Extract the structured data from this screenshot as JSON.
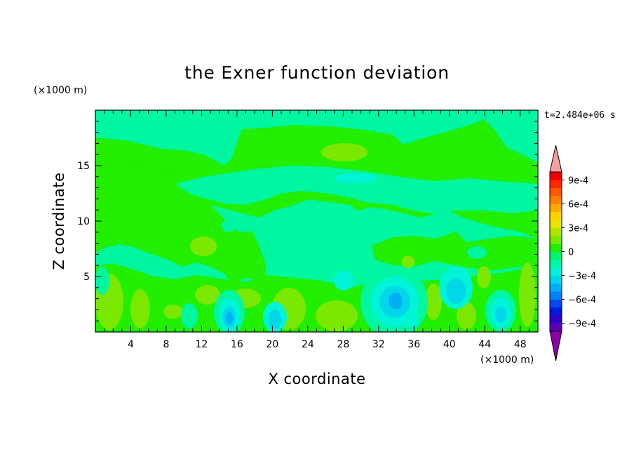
{
  "chart_data": {
    "type": "heatmap",
    "title": "the Exner function deviation",
    "xlabel": "X coordinate",
    "ylabel": "Z coordinate",
    "x_unit": "(×1000 m)",
    "y_unit": "(×1000 m)",
    "time_label": "t=2.484e+06 s",
    "xlim": [
      0,
      50
    ],
    "ylim": [
      0,
      20
    ],
    "x_ticks": [
      "4",
      "8",
      "12",
      "16",
      "20",
      "24",
      "28",
      "32",
      "36",
      "40",
      "44",
      "48"
    ],
    "y_ticks": [
      "5",
      "10",
      "15"
    ],
    "colorbar": {
      "levels": [
        -0.0011,
        -0.001,
        -0.0009,
        -0.0008,
        -0.0007,
        -0.0006,
        -0.0005,
        -0.0004,
        -0.0003,
        -0.0002,
        -0.0001,
        0,
        0.0001,
        0.0002,
        0.0003,
        0.0004,
        0.0005,
        0.0006,
        0.0007,
        0.0008,
        0.0009,
        0.001
      ],
      "labels": [
        "9e-4",
        "6e-4",
        "3e-4",
        "0",
        "−3e-4",
        "−6e-4",
        "−9e-4"
      ],
      "colors": [
        "#8c00a8",
        "#5a00b4",
        "#3000c8",
        "#0018dc",
        "#0048f0",
        "#0080f4",
        "#00b0f4",
        "#00d8ea",
        "#00f4d8",
        "#00f6a0",
        "#00f470",
        "#22ee00",
        "#7ae800",
        "#b2e400",
        "#e6e600",
        "#ffd000",
        "#ffa800",
        "#ff8000",
        "#ff5800",
        "#ff2800",
        "#f40000",
        "#f4a0a0"
      ]
    },
    "regions": [
      {
        "level": "-1e-4",
        "color": "#00f6a0"
      },
      {
        "level": "0",
        "color": "#22ee00"
      },
      {
        "level": "1e-4",
        "color": "#7ae800"
      },
      {
        "level": "-2e-4",
        "color": "#00f4d8"
      },
      {
        "level": "-3e-4",
        "color": "#00d8ea"
      },
      {
        "level": "-4e-4",
        "color": "#00b0f4"
      }
    ]
  }
}
